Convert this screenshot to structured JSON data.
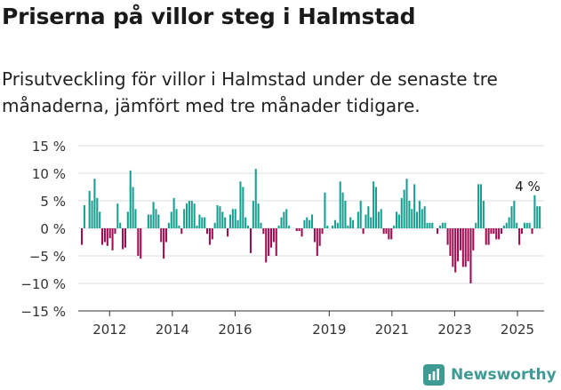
{
  "title": "Priserna på villor steg i Halmstad",
  "subtitle": "Prisutveckling för villor i Halmstad under de senaste tre månaderna, jämfört med tre månader tidigare.",
  "brand": {
    "name": "Newsworthy",
    "icon": "newsworthy-logo-icon"
  },
  "colors": {
    "positive": "#17a092",
    "negative": "#9c0f52",
    "axis": "#333333",
    "grid": "#dddddd",
    "brand": "#3f9a94"
  },
  "chart_data": {
    "type": "bar",
    "ylim": [
      -15,
      15
    ],
    "y_ticks": [
      {
        "value": 15,
        "label": "15 %"
      },
      {
        "value": 10,
        "label": "10 %"
      },
      {
        "value": 5,
        "label": "5 %"
      },
      {
        "value": 0,
        "label": "0 %"
      },
      {
        "value": -5,
        "label": "−5 %"
      },
      {
        "value": -10,
        "label": "−10 %"
      },
      {
        "value": -15,
        "label": "−15 %"
      }
    ],
    "x_ticks": [
      {
        "value": 2012,
        "label": "2012"
      },
      {
        "value": 2014,
        "label": "2014"
      },
      {
        "value": 2016,
        "label": "2016"
      },
      {
        "value": 2019,
        "label": "2019"
      },
      {
        "value": 2021,
        "label": "2021"
      },
      {
        "value": 2023,
        "label": "2023"
      },
      {
        "value": 2025,
        "label": "2025"
      }
    ],
    "x_range": [
      2011.0,
      2025.85
    ],
    "annotation": {
      "label": "4 %",
      "x": 2025.1,
      "value": 4
    },
    "bar_values": [
      -3.0,
      4.2,
      0.0,
      6.8,
      5.0,
      9.0,
      5.5,
      3.0,
      -3.0,
      -2.5,
      -3.2,
      -1.8,
      -4.0,
      -1.0,
      4.5,
      1.0,
      -3.8,
      -3.5,
      3.0,
      10.5,
      7.5,
      3.5,
      -5.0,
      -5.5,
      0.0,
      0.0,
      2.5,
      2.5,
      4.8,
      3.5,
      2.5,
      -2.5,
      -5.5,
      -2.5,
      1.0,
      3.0,
      5.5,
      3.5,
      0.5,
      -1.0,
      3.5,
      4.5,
      5.0,
      5.0,
      4.5,
      0.5,
      2.5,
      2.0,
      2.0,
      -1.0,
      -3.0,
      -2.0,
      1.0,
      4.2,
      4.0,
      3.0,
      2.0,
      -1.5,
      2.5,
      3.5,
      3.5,
      1.5,
      8.5,
      7.5,
      2.0,
      0.5,
      -4.5,
      5.0,
      10.8,
      4.5,
      1.0,
      -1.0,
      -6.2,
      -5.0,
      -3.5,
      -2.5,
      -5.0,
      0.5,
      2.0,
      3.0,
      3.5,
      0.5,
      0.0,
      0.0,
      -0.5,
      -0.5,
      -1.5,
      1.5,
      2.0,
      1.5,
      2.5,
      -2.5,
      -5.0,
      -3.2,
      -1.0,
      6.5,
      0.5,
      0.0,
      0.5,
      1.5,
      1.0,
      8.5,
      6.5,
      5.0,
      0.5,
      2.0,
      1.5,
      0.0,
      3.0,
      5.0,
      -1.0,
      2.5,
      4.0,
      2.0,
      8.5,
      7.5,
      3.0,
      3.5,
      -1.0,
      -1.0,
      -2.0,
      -2.0,
      0.5,
      3.0,
      2.5,
      5.5,
      7.0,
      9.0,
      5.0,
      3.5,
      8.0,
      3.0,
      5.0,
      3.5,
      4.0,
      1.0,
      1.0,
      1.0,
      0.0,
      -1.0,
      0.5,
      1.0,
      1.0,
      -3.0,
      -5.0,
      -7.0,
      -8.0,
      -6.0,
      -4.0,
      -7.0,
      -7.0,
      -6.0,
      -10.0,
      -4.0,
      1.0,
      8.0,
      8.0,
      5.0,
      -3.0,
      -3.0,
      -1.0,
      -1.0,
      -2.0,
      -2.0,
      -1.0,
      0.5,
      1.0,
      2.0,
      4.0,
      5.0,
      1.0,
      -3.0,
      -1.0,
      1.0,
      1.0,
      1.0,
      -1.0,
      6.0,
      4.0,
      4.0
    ]
  }
}
